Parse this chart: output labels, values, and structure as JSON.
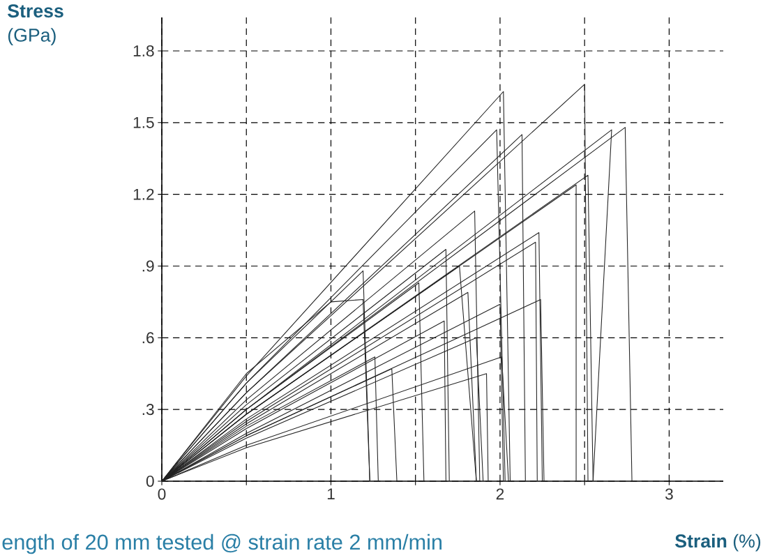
{
  "chart_data": {
    "type": "line",
    "xlabel": "**Strain** (%)",
    "ylabel": "**Stress** (GPa)",
    "annotations": [
      "ength of 20 mm tested @ strain rate 2 mm/min"
    ],
    "xlim": [
      0,
      3.32
    ],
    "ylim": [
      0,
      1.94
    ],
    "xticks": [
      0,
      {
        "value": 0.5,
        "label": null
      },
      1,
      {
        "value": 1.5,
        "label": null
      },
      2,
      {
        "value": 2.5,
        "label": null
      },
      3
    ],
    "yticks": [
      0,
      {
        "value": 0.3,
        "label": ".3"
      },
      {
        "value": 0.6,
        "label": ".6"
      },
      {
        "value": 0.9,
        "label": ".9"
      },
      1.2,
      1.5,
      1.8
    ],
    "grid": true,
    "line_style": "solid",
    "marker": "none",
    "series": [
      {
        "color": "#222222",
        "x": [
          0,
          0.5,
          2.02,
          2.06
        ],
        "values": [
          0,
          0.44,
          1.63,
          0
        ]
      },
      {
        "color": "#222222",
        "x": [
          0,
          0.5,
          2.5,
          2.52
        ],
        "values": [
          0,
          0.37,
          1.66,
          0
        ]
      },
      {
        "color": "#222222",
        "x": [
          0,
          0.5,
          1.98,
          2.03
        ],
        "values": [
          0,
          0.41,
          1.47,
          0
        ]
      },
      {
        "color": "#222222",
        "x": [
          0,
          0.5,
          2.13,
          2.15
        ],
        "values": [
          0,
          0.37,
          1.45,
          0
        ]
      },
      {
        "color": "#222222",
        "x": [
          0,
          0.5,
          2.66,
          2.55
        ],
        "values": [
          0,
          0.3,
          1.47,
          0
        ]
      },
      {
        "color": "#222222",
        "x": [
          0,
          0.5,
          2.74,
          2.78
        ],
        "values": [
          0,
          0.3,
          1.48,
          0
        ]
      },
      {
        "color": "#222222",
        "x": [
          0,
          0.5,
          2.52,
          2.55
        ],
        "values": [
          0,
          0.28,
          1.28,
          0
        ]
      },
      {
        "color": "#222222",
        "x": [
          0,
          0.5,
          2.45,
          2.45
        ],
        "values": [
          0,
          0.28,
          1.24,
          0
        ]
      },
      {
        "color": "#222222",
        "x": [
          0,
          0.5,
          1.85,
          1.88
        ],
        "values": [
          0,
          0.34,
          1.13,
          0
        ]
      },
      {
        "color": "#222222",
        "x": [
          0,
          0.5,
          2.23,
          2.25
        ],
        "values": [
          0,
          0.26,
          1.04,
          0
        ]
      },
      {
        "color": "#222222",
        "x": [
          0,
          0.5,
          2.21,
          2.22
        ],
        "values": [
          0,
          0.25,
          1.0,
          0
        ]
      },
      {
        "color": "#222222",
        "x": [
          0,
          0.5,
          1.19,
          1.23
        ],
        "values": [
          0,
          0.41,
          0.88,
          0
        ]
      },
      {
        "color": "#222222",
        "x": [
          0,
          0.5,
          1.68,
          1.7
        ],
        "values": [
          0,
          0.32,
          0.97,
          0
        ]
      },
      {
        "color": "#222222",
        "x": [
          0,
          0.5,
          1.76,
          1.86
        ],
        "values": [
          0,
          0.28,
          0.9,
          0
        ]
      },
      {
        "color": "#222222",
        "x": [
          0,
          0.5,
          1.0,
          1.19,
          1.23
        ],
        "values": [
          0,
          0.45,
          0.75,
          0.76,
          0
        ]
      },
      {
        "color": "#222222",
        "x": [
          0,
          0.5,
          2.24,
          2.26
        ],
        "values": [
          0,
          0.19,
          0.76,
          0
        ]
      },
      {
        "color": "#222222",
        "x": [
          0,
          0.5,
          1.81,
          1.86
        ],
        "values": [
          0,
          0.24,
          0.79,
          0
        ]
      },
      {
        "color": "#222222",
        "x": [
          0,
          0.5,
          2.0,
          2.02
        ],
        "values": [
          0,
          0.2,
          0.74,
          0
        ]
      },
      {
        "color": "#222222",
        "x": [
          0,
          0.5,
          1.67,
          1.68
        ],
        "values": [
          0,
          0.22,
          0.67,
          0
        ]
      },
      {
        "color": "#222222",
        "x": [
          0,
          0.5,
          1.86,
          1.9
        ],
        "values": [
          0,
          0.18,
          0.6,
          0
        ]
      },
      {
        "color": "#222222",
        "x": [
          0,
          0.5,
          1.26,
          1.28
        ],
        "values": [
          0,
          0.23,
          0.52,
          0
        ]
      },
      {
        "color": "#222222",
        "x": [
          0,
          0.5,
          1.36,
          1.39
        ],
        "values": [
          0,
          0.19,
          0.47,
          0
        ]
      },
      {
        "color": "#222222",
        "x": [
          0,
          0.5,
          2.01,
          2.05
        ],
        "values": [
          0,
          0.15,
          0.52,
          0
        ]
      },
      {
        "color": "#222222",
        "x": [
          0,
          0.5,
          1.92,
          1.93
        ],
        "values": [
          0,
          0.14,
          0.45,
          0
        ]
      },
      {
        "color": "#222222",
        "x": [
          0,
          0.5,
          1.52,
          1.55
        ],
        "values": [
          0,
          0.3,
          0.83,
          0
        ]
      }
    ]
  }
}
